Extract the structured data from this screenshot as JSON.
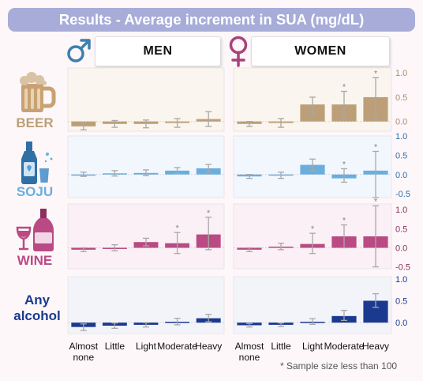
{
  "title": "Results - Average increment in SUA (mg/dL)",
  "panels": {
    "men": {
      "label": "MEN",
      "icon": "male-symbol-icon"
    },
    "women": {
      "label": "WOMEN",
      "icon": "female-symbol-icon"
    }
  },
  "drinks": [
    {
      "label": "BEER",
      "icon": "beer-mug-icon",
      "color": "#bc9f78"
    },
    {
      "label": "SOJU",
      "icon": "soju-bottle-icon",
      "color": "#6aaede"
    },
    {
      "label": "WINE",
      "icon": "wine-bottle-glass-icon",
      "color": "#b94a84"
    },
    {
      "label": "Any alcohol",
      "icon": "",
      "color": "#1b3a8f"
    }
  ],
  "footnote": "* Sample size less than 100",
  "chart_data": {
    "type": "bar",
    "categories": [
      "Almost none",
      "Little",
      "Light",
      "Moderate",
      "Heavy"
    ],
    "y_axis_ticks": {
      "BEER": [
        "1.0",
        "0.5",
        "0.0"
      ],
      "SOJU": [
        "1.0",
        "0.5",
        "0.0",
        "-0.5"
      ],
      "WINE": [
        "1.0",
        "0.5",
        "0.0",
        "-0.5"
      ],
      "Any alcohol": [
        "1.0",
        "0.5",
        "0.0"
      ]
    },
    "rows": [
      {
        "drink": "BEER",
        "ylim": [
          -0.2,
          1.1
        ],
        "men": [
          {
            "v": -0.1,
            "lo": -0.17,
            "hi": -0.03
          },
          {
            "v": -0.05,
            "lo": -0.12,
            "hi": 0.02
          },
          {
            "v": -0.05,
            "lo": -0.13,
            "hi": 0.03
          },
          {
            "v": -0.03,
            "lo": -0.12,
            "hi": 0.06
          },
          {
            "v": 0.05,
            "lo": -0.1,
            "hi": 0.2
          }
        ],
        "women": [
          {
            "v": -0.05,
            "lo": -0.1,
            "hi": 0.0
          },
          {
            "v": -0.03,
            "lo": -0.12,
            "hi": 0.06
          },
          {
            "v": 0.35,
            "lo": 0.15,
            "hi": 0.5
          },
          {
            "v": 0.35,
            "lo": 0.05,
            "hi": 0.62
          },
          {
            "v": 0.5,
            "lo": 0.05,
            "hi": 0.9
          }
        ],
        "asterisks_women": [
          false,
          false,
          false,
          true,
          true
        ],
        "asterisks_men": [
          false,
          false,
          false,
          false,
          false
        ]
      },
      {
        "drink": "SOJU",
        "ylim": [
          -0.6,
          1.0
        ],
        "men": [
          {
            "v": 0.0,
            "lo": -0.05,
            "hi": 0.06
          },
          {
            "v": 0.03,
            "lo": -0.04,
            "hi": 0.1
          },
          {
            "v": 0.04,
            "lo": -0.03,
            "hi": 0.12
          },
          {
            "v": 0.1,
            "lo": 0.02,
            "hi": 0.18
          },
          {
            "v": 0.16,
            "lo": 0.06,
            "hi": 0.26
          }
        ],
        "women": [
          {
            "v": -0.05,
            "lo": -0.1,
            "hi": 0.0
          },
          {
            "v": -0.03,
            "lo": -0.1,
            "hi": 0.06
          },
          {
            "v": 0.25,
            "lo": 0.1,
            "hi": 0.4
          },
          {
            "v": -0.1,
            "lo": -0.2,
            "hi": 0.15
          },
          {
            "v": 0.1,
            "lo": -0.6,
            "hi": 0.6
          }
        ],
        "asterisks_women": [
          false,
          false,
          false,
          true,
          true
        ],
        "asterisks_men": [
          false,
          false,
          false,
          false,
          false
        ]
      },
      {
        "drink": "WINE",
        "ylim": [
          -0.55,
          1.15
        ],
        "men": [
          {
            "v": -0.05,
            "lo": -0.1,
            "hi": 0.0
          },
          {
            "v": 0.0,
            "lo": -0.08,
            "hi": 0.08
          },
          {
            "v": 0.15,
            "lo": 0.05,
            "hi": 0.25
          },
          {
            "v": 0.12,
            "lo": -0.15,
            "hi": 0.4
          },
          {
            "v": 0.35,
            "lo": -0.05,
            "hi": 0.8
          }
        ],
        "women": [
          {
            "v": -0.05,
            "lo": -0.1,
            "hi": 0.0
          },
          {
            "v": 0.03,
            "lo": -0.05,
            "hi": 0.12
          },
          {
            "v": 0.1,
            "lo": -0.15,
            "hi": 0.38
          },
          {
            "v": 0.3,
            "lo": 0.0,
            "hi": 0.6
          },
          {
            "v": 0.3,
            "lo": -0.5,
            "hi": 1.1
          }
        ],
        "asterisks_women": [
          false,
          false,
          true,
          true,
          true
        ],
        "asterisks_men": [
          false,
          false,
          false,
          true,
          true
        ]
      },
      {
        "drink": "Any alcohol",
        "ylim": [
          -0.25,
          1.05
        ],
        "men": [
          {
            "v": -0.1,
            "lo": -0.18,
            "hi": -0.03
          },
          {
            "v": -0.07,
            "lo": -0.13,
            "hi": -0.01
          },
          {
            "v": -0.05,
            "lo": -0.1,
            "hi": 0.0
          },
          {
            "v": 0.02,
            "lo": -0.05,
            "hi": 0.1
          },
          {
            "v": 0.1,
            "lo": 0.02,
            "hi": 0.19
          }
        ],
        "women": [
          {
            "v": -0.06,
            "lo": -0.1,
            "hi": -0.02
          },
          {
            "v": -0.05,
            "lo": -0.09,
            "hi": -0.01
          },
          {
            "v": 0.02,
            "lo": -0.04,
            "hi": 0.09
          },
          {
            "v": 0.15,
            "lo": 0.05,
            "hi": 0.28
          },
          {
            "v": 0.5,
            "lo": 0.35,
            "hi": 0.66
          }
        ],
        "asterisks_women": [
          false,
          false,
          false,
          false,
          false
        ],
        "asterisks_men": [
          false,
          false,
          false,
          false,
          false
        ]
      }
    ]
  }
}
